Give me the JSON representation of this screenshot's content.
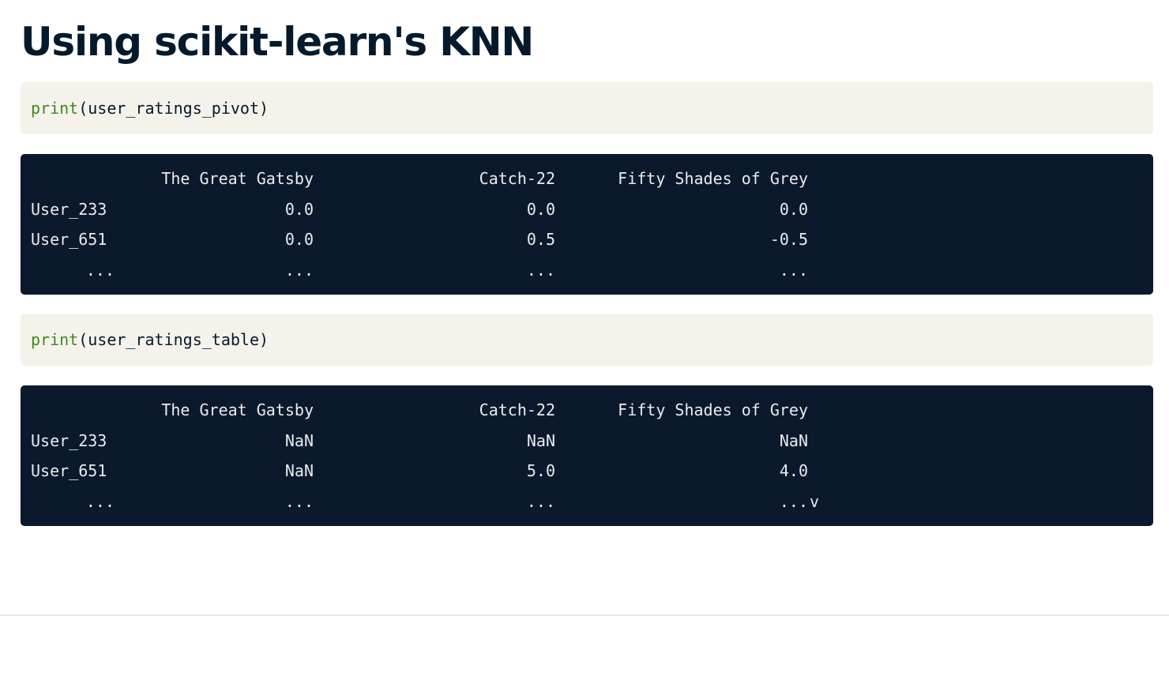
{
  "title": "Using scikit-learn's KNN",
  "blocks": [
    {
      "code": {
        "fn": "print",
        "args": "(user_ratings_pivot)"
      },
      "output": {
        "header": [
          "",
          "The Great Gatsby",
          "Catch-22",
          "Fifty Shades of Grey"
        ],
        "rows": [
          [
            "User_233",
            "0.0",
            "0.0",
            "0.0"
          ],
          [
            "User_651",
            "0.0",
            "0.5",
            "-0.5"
          ],
          [
            "...",
            "...",
            "...",
            "..."
          ]
        ],
        "trailing": ""
      }
    },
    {
      "code": {
        "fn": "print",
        "args": "(user_ratings_table)"
      },
      "output": {
        "header": [
          "",
          "The Great Gatsby",
          "Catch-22",
          "Fifty Shades of Grey"
        ],
        "rows": [
          [
            "User_233",
            "NaN",
            "NaN",
            "NaN"
          ],
          [
            "User_651",
            "NaN",
            "5.0",
            "4.0"
          ],
          [
            "...",
            "...",
            "...",
            "..."
          ]
        ],
        "trailing": "v"
      }
    }
  ],
  "colors": {
    "title": "#05192d",
    "code_bg": "#f5f2eb",
    "code_fn": "#3a8a1a",
    "output_bg": "#0b192c",
    "output_text": "#e9ecef"
  }
}
